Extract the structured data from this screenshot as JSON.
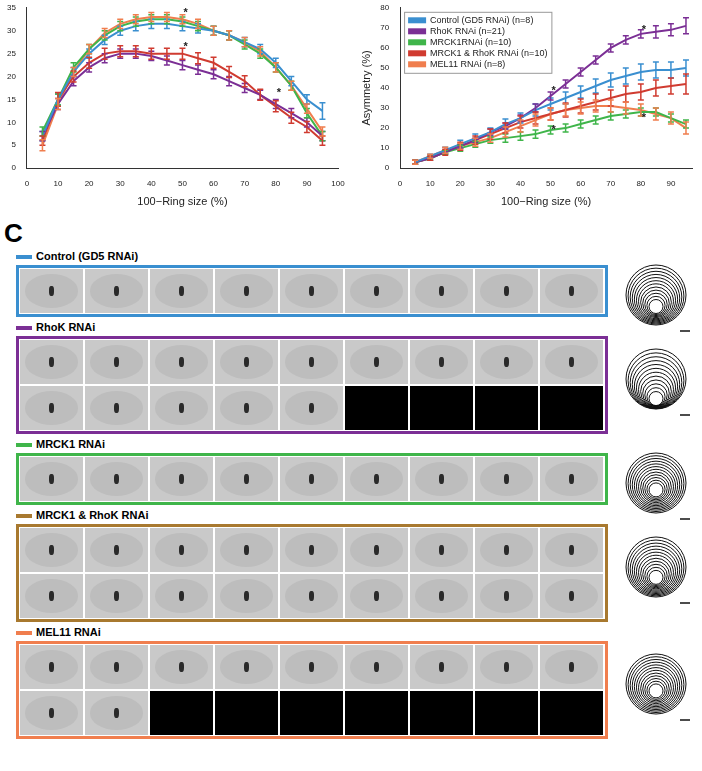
{
  "chart_data": [
    {
      "type": "line",
      "grid": false,
      "x_label": "100−Ring size (%)",
      "x": [
        5,
        10,
        15,
        20,
        25,
        30,
        35,
        40,
        45,
        50,
        55,
        60,
        65,
        70,
        75,
        80,
        85,
        90,
        95
      ],
      "xlim": [
        0,
        100
      ],
      "xticks": [
        0,
        10,
        20,
        30,
        40,
        50,
        60,
        70,
        80,
        90,
        100
      ],
      "ylim": [
        0,
        35
      ],
      "yticks": [
        0,
        5,
        10,
        15,
        20,
        25,
        30,
        35
      ],
      "series": [
        {
          "color": "#3a8fd0",
          "values": [
            7,
            15,
            21,
            25,
            28,
            30,
            31,
            31.5,
            31.5,
            31,
            30.5,
            30,
            29,
            27.5,
            26,
            23,
            19,
            15,
            12.5
          ],
          "errors": [
            1,
            1.2,
            1,
            1,
            1,
            1,
            1,
            1,
            1,
            1,
            1,
            1,
            1,
            1,
            1,
            1,
            1,
            1,
            1.8
          ]
        },
        {
          "color": "#7b2f95",
          "values": [
            7,
            14,
            19,
            22,
            24,
            25,
            25,
            24.5,
            23.5,
            22.5,
            21.5,
            20.5,
            19,
            17.5,
            16,
            14,
            12,
            10,
            7
          ],
          "errors": [
            1,
            1.2,
            1,
            1,
            1,
            1,
            1,
            1,
            1,
            1,
            1,
            1,
            1,
            1,
            1,
            1,
            1,
            1,
            1
          ]
        },
        {
          "color": "#3fb54a",
          "values": [
            8,
            15,
            22,
            26,
            29,
            31,
            32,
            32.5,
            32.5,
            32,
            31,
            30,
            29,
            27,
            25,
            22,
            18,
            12,
            7
          ],
          "errors": [
            1,
            1.2,
            1,
            1,
            1,
            1,
            1,
            1,
            1,
            1,
            1,
            1,
            1,
            1,
            1,
            1,
            1,
            1,
            1
          ]
        },
        {
          "color": "#d03b30",
          "values": [
            6,
            15,
            20,
            23,
            25,
            25.5,
            25.5,
            25,
            25,
            25,
            24,
            23,
            21,
            19,
            16,
            13.5,
            11,
            9,
            6
          ],
          "errors": [
            1,
            1.5,
            1.2,
            1.2,
            1.2,
            1.2,
            1.2,
            1.2,
            1.2,
            1.2,
            1.2,
            1.2,
            1.2,
            1.2,
            1.2,
            1.2,
            1.2,
            1.2,
            1
          ]
        },
        {
          "color": "#f07e4e",
          "values": [
            5,
            14,
            21,
            26,
            29.5,
            31.5,
            32.5,
            33,
            33,
            32.5,
            31.5,
            30,
            29,
            27.5,
            25.5,
            22,
            18,
            13,
            8
          ],
          "errors": [
            1.2,
            1.2,
            1,
            1,
            1,
            1,
            1,
            1,
            1,
            1,
            1,
            1,
            1,
            1,
            1,
            1,
            1,
            1,
            1
          ]
        }
      ],
      "annotations": [
        {
          "x": 51,
          "y": 33.8,
          "text": "*"
        },
        {
          "x": 51,
          "y": 26.5,
          "text": "*"
        },
        {
          "x": 81,
          "y": 16.5,
          "text": "*"
        }
      ]
    },
    {
      "type": "line",
      "grid": false,
      "legend": "upper left",
      "x_label": "100−Ring size (%)",
      "y_label": "Asymmetry (%)",
      "x": [
        5,
        10,
        15,
        20,
        25,
        30,
        35,
        40,
        45,
        50,
        55,
        60,
        65,
        70,
        75,
        80,
        85,
        90,
        95
      ],
      "xlim": [
        0,
        97
      ],
      "xticks": [
        0,
        10,
        20,
        30,
        40,
        50,
        60,
        70,
        80,
        90
      ],
      "ylim": [
        0,
        80
      ],
      "yticks": [
        0,
        10,
        20,
        30,
        40,
        50,
        60,
        70,
        80
      ],
      "series": [
        {
          "name": "Control (GD5 RNAi) (n=8)",
          "color": "#3a8fd0",
          "values": [
            3,
            6,
            9,
            12,
            15,
            18,
            22,
            25,
            29,
            32,
            35,
            38,
            41,
            44,
            46,
            48,
            49,
            49,
            50
          ],
          "errors": [
            1,
            1,
            1.5,
            2,
            2,
            2,
            2.5,
            2.5,
            3,
            3,
            3,
            3,
            3.5,
            3.5,
            4,
            4,
            4,
            4,
            4
          ]
        },
        {
          "name": "RhoK RNAi (n=21)",
          "color": "#7b2f95",
          "values": [
            3,
            5,
            8,
            11,
            14,
            18,
            21,
            25,
            30,
            36,
            42,
            48,
            54,
            60,
            64,
            67,
            68,
            69,
            71
          ],
          "errors": [
            1,
            1,
            1,
            1,
            1,
            1.5,
            1.5,
            1.5,
            2,
            2,
            2,
            2,
            2,
            2,
            2,
            2,
            3,
            3,
            4
          ]
        },
        {
          "name": "MRCK1RNAi (n=10)",
          "color": "#3fb54a",
          "values": [
            3,
            5,
            8,
            10,
            12,
            14,
            15,
            16,
            17,
            19,
            20,
            22,
            24,
            26,
            27,
            28,
            28,
            25,
            22
          ],
          "errors": [
            1,
            1,
            1,
            1.5,
            1.5,
            1.5,
            2,
            2,
            2,
            2,
            2,
            2,
            2,
            2,
            2,
            2,
            2,
            2,
            2
          ]
        },
        {
          "name": "MRCK1 & RhoK RNAi (n=10)",
          "color": "#d03b30",
          "values": [
            3,
            5,
            8,
            11,
            14,
            17,
            20,
            23,
            25,
            27,
            29,
            31,
            33,
            35,
            37,
            38,
            40,
            41,
            42
          ],
          "errors": [
            1,
            1,
            1.5,
            2,
            2,
            2.5,
            2.5,
            3,
            3,
            3,
            3.5,
            3.5,
            4,
            4,
            4,
            4,
            4,
            4,
            5
          ]
        },
        {
          "name": "MEL11 RNAi (n=8)",
          "color": "#f07e4e",
          "values": [
            3,
            6,
            9,
            11,
            13,
            15,
            18,
            21,
            24,
            27,
            29,
            30,
            31,
            31,
            30,
            29,
            27,
            25,
            20
          ],
          "errors": [
            1,
            1,
            1.5,
            1.5,
            2,
            2,
            2.5,
            3,
            3,
            3,
            3,
            3,
            3,
            3,
            3,
            3,
            3,
            3,
            3
          ]
        }
      ],
      "annotations": [
        {
          "x": 51,
          "y": 38.5,
          "text": "*"
        },
        {
          "x": 81,
          "y": 69,
          "text": "*"
        },
        {
          "x": 51,
          "y": 19,
          "text": "*"
        },
        {
          "x": 81,
          "y": 25,
          "text": "*"
        }
      ]
    }
  ],
  "panel_c": {
    "letter": "C",
    "groups": [
      {
        "label": "Control (GD5 RNAi)",
        "color": "#3a8fd0"
      },
      {
        "label": "RhoK RNAi",
        "color": "#7b2f95"
      },
      {
        "label": "MRCK1 RNAi",
        "color": "#3fb54a"
      },
      {
        "label": "MRCK1 & RhoK RNAi",
        "color": "#a8792f"
      },
      {
        "label": "MEL11 RNAi",
        "color": "#f07e4e"
      }
    ]
  }
}
